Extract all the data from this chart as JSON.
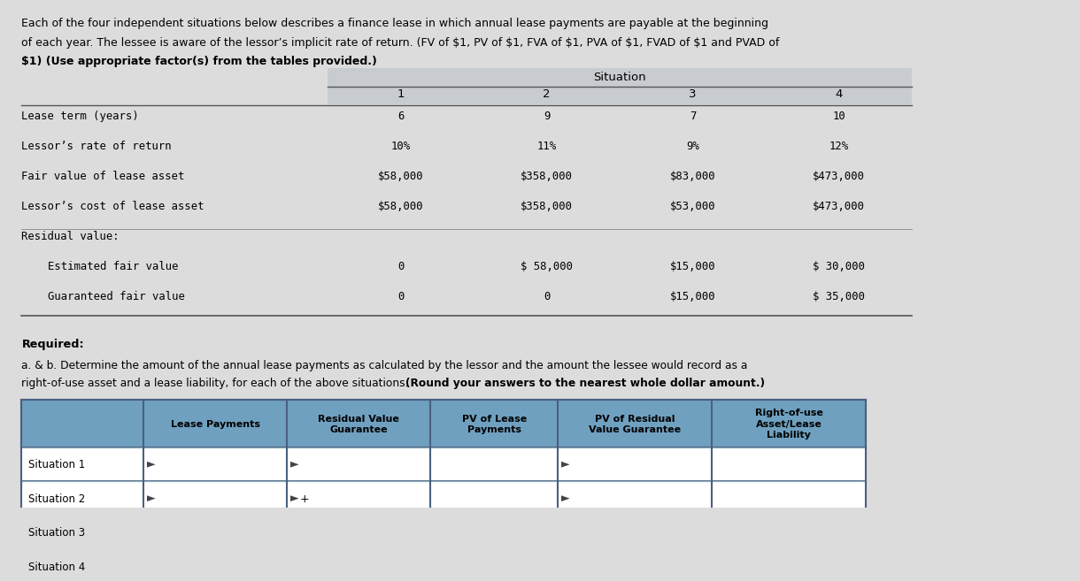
{
  "bg_color": "#dcdcdc",
  "header_line1": "Each of the four independent situations below describes a finance lease in which annual lease payments are payable at the beginning",
  "header_line2_normal": "of each year. The lessee is aware of the lessor’s implicit rate of return. (FV of $1, PV of $1, FVA of $1, PVA of $1, FVAD of $1 and PVAD of",
  "header_line3_bold": "$1) (Use appropriate factor(s) from the tables provided.)",
  "situation_header": "Situation",
  "situation_cols": [
    "1",
    "2",
    "3",
    "4"
  ],
  "row_labels": [
    "Lease term (years)",
    "Lessor’s rate of return",
    "Fair value of lease asset",
    "Lessor’s cost of lease asset",
    "Residual value:",
    "  Estimated fair value",
    "  Guaranteed fair value"
  ],
  "table1_data": [
    [
      "6",
      "9",
      "7",
      "10"
    ],
    [
      "10%",
      "11%",
      "9%",
      "12%"
    ],
    [
      "$58,000",
      "$358,000",
      "$83,000",
      "$473,000"
    ],
    [
      "$58,000",
      "$358,000",
      "$53,000",
      "$473,000"
    ],
    [
      "",
      "",
      "",
      ""
    ],
    [
      "0",
      "$ 58,000",
      "$15,000",
      "$ 30,000"
    ],
    [
      "0",
      "0",
      "$15,000",
      "$ 35,000"
    ]
  ],
  "required_label": "Required:",
  "ab_line1": "a. & b. Determine the amount of the annual lease payments as calculated by the lessor and the amount the lessee would record as a",
  "ab_line2_normal": "right-of-use asset and a lease liability, for each of the above situations. ",
  "ab_line2_bold": "(Round your answers to the nearest whole dollar amount.)",
  "table2_col0_label": "",
  "table2_headers": [
    "Lease Payments",
    "Residual Value\nGuarantee",
    "PV of Lease\nPayments",
    "PV of Residual\nValue Guarantee",
    "Right-of-use\nAsset/Lease\nLiability"
  ],
  "table2_rows": [
    "Situation 1",
    "Situation 2",
    "Situation 3",
    "Situation 4"
  ],
  "table2_header_bg": "#6fa0c0",
  "table2_row_bg_light": "#f0f4f8",
  "table2_row_bg_white": "#ffffff",
  "table2_border_dark": "#4a6080",
  "table2_border_light": "#8aaabb",
  "sit2_marker": "+"
}
